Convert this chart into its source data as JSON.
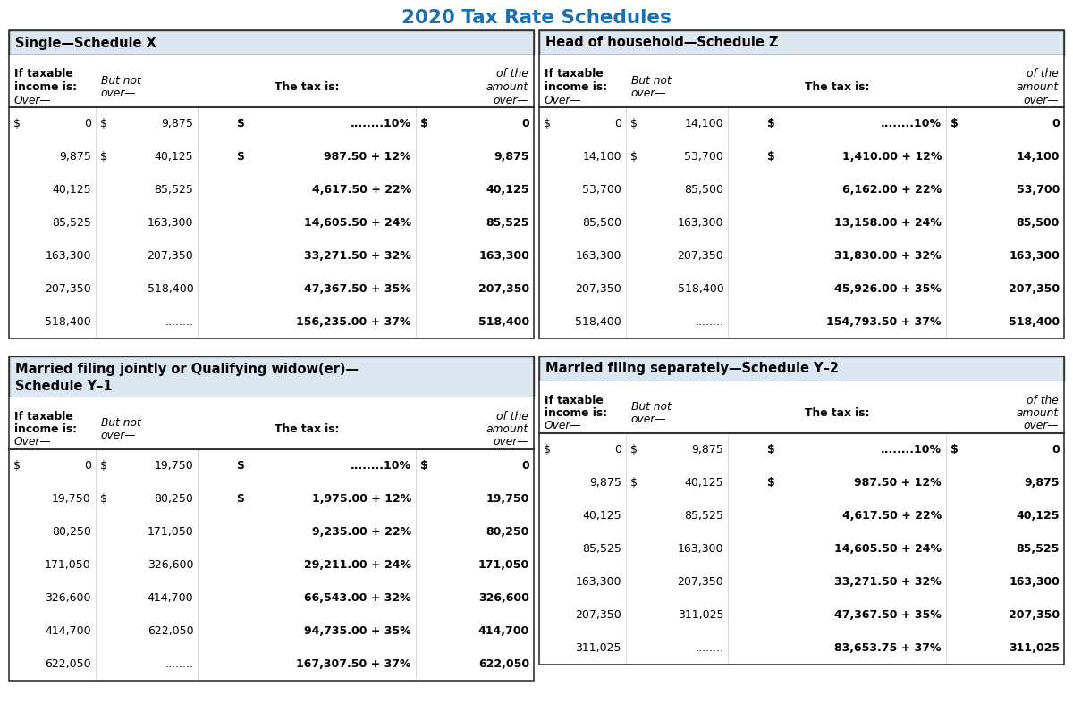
{
  "title": "2020 Tax Rate Schedules",
  "title_color": "#1a6faf",
  "bg_color": "#ffffff",
  "header_bg": "#dce6f1",
  "border_color": "#333333",
  "schedules": [
    {
      "name": "Single—Schedule X",
      "name2": null,
      "rows": [
        [
          "$",
          "0",
          "$",
          "9,875",
          "........10%",
          "$",
          "0"
        ],
        [
          "",
          "9,875",
          "$",
          "40,125",
          "987.50 + 12%",
          "",
          "9,875"
        ],
        [
          "",
          "40,125",
          "",
          "85,525",
          "4,617.50 + 22%",
          "",
          "40,125"
        ],
        [
          "",
          "85,525",
          "",
          "163,300",
          "14,605.50 + 24%",
          "",
          "85,525"
        ],
        [
          "",
          "163,300",
          "",
          "207,350",
          "33,271.50 + 32%",
          "",
          "163,300"
        ],
        [
          "",
          "207,350",
          "",
          "518,400",
          "47,367.50 + 35%",
          "",
          "207,350"
        ],
        [
          "",
          "518,400",
          "",
          "........",
          "156,235.00 + 37%",
          "",
          "518,400"
        ]
      ]
    },
    {
      "name": "Head of household—Schedule Z",
      "name2": null,
      "rows": [
        [
          "$",
          "0",
          "$",
          "14,100",
          "........10%",
          "$",
          "0"
        ],
        [
          "",
          "14,100",
          "$",
          "53,700",
          "1,410.00 + 12%",
          "",
          "14,100"
        ],
        [
          "",
          "53,700",
          "",
          "85,500",
          "6,162.00 + 22%",
          "",
          "53,700"
        ],
        [
          "",
          "85,500",
          "",
          "163,300",
          "13,158.00 + 24%",
          "",
          "85,500"
        ],
        [
          "",
          "163,300",
          "",
          "207,350",
          "31,830.00 + 32%",
          "",
          "163,300"
        ],
        [
          "",
          "207,350",
          "",
          "518,400",
          "45,926.00 + 35%",
          "",
          "207,350"
        ],
        [
          "",
          "518,400",
          "",
          "........",
          "154,793.50 + 37%",
          "",
          "518,400"
        ]
      ]
    },
    {
      "name": "Married filing jointly or Qualifying widow(er)—",
      "name2": "Schedule Y–1",
      "rows": [
        [
          "$",
          "0",
          "$",
          "19,750",
          "........10%",
          "$",
          "0"
        ],
        [
          "",
          "19,750",
          "$",
          "80,250",
          "1,975.00 + 12%",
          "",
          "19,750"
        ],
        [
          "",
          "80,250",
          "",
          "171,050",
          "9,235.00 + 22%",
          "",
          "80,250"
        ],
        [
          "",
          "171,050",
          "",
          "326,600",
          "29,211.00 + 24%",
          "",
          "171,050"
        ],
        [
          "",
          "326,600",
          "",
          "414,700",
          "66,543.00 + 32%",
          "",
          "326,600"
        ],
        [
          "",
          "414,700",
          "",
          "622,050",
          "94,735.00 + 35%",
          "",
          "414,700"
        ],
        [
          "",
          "622,050",
          "",
          "........",
          "167,307.50 + 37%",
          "",
          "622,050"
        ]
      ]
    },
    {
      "name": "Married filing separately—Schedule Y–2",
      "name2": null,
      "rows": [
        [
          "$",
          "0",
          "$",
          "9,875",
          "........10%",
          "$",
          "0"
        ],
        [
          "",
          "9,875",
          "$",
          "40,125",
          "987.50 + 12%",
          "",
          "9,875"
        ],
        [
          "",
          "40,125",
          "",
          "85,525",
          "4,617.50 + 22%",
          "",
          "40,125"
        ],
        [
          "",
          "85,525",
          "",
          "163,300",
          "14,605.50 + 24%",
          "",
          "85,525"
        ],
        [
          "",
          "163,300",
          "",
          "207,350",
          "33,271.50 + 32%",
          "",
          "163,300"
        ],
        [
          "",
          "207,350",
          "",
          "311,025",
          "47,367.50 + 35%",
          "",
          "207,350"
        ],
        [
          "",
          "311,025",
          "",
          "........",
          "83,653.75 + 37%",
          "",
          "311,025"
        ]
      ]
    }
  ]
}
